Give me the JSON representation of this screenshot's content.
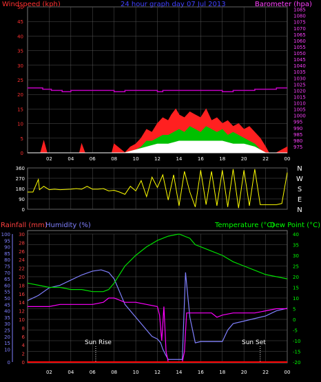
{
  "chart_data": [
    {
      "type": "area",
      "title": "24 hour graph day  07 Jul 2013",
      "ylabel": "Windspeed (kph)",
      "y2label": "Barometer (hpa)",
      "ylim": [
        0,
        50
      ],
      "y2lim": [
        970,
        1087
      ],
      "yticks": [
        "0",
        "5",
        "10",
        "15",
        "20",
        "25",
        "30",
        "35",
        "40",
        "45",
        "50"
      ],
      "y2ticks": [
        "975",
        "980",
        "985",
        "990",
        "995",
        "1000",
        "1005",
        "1010",
        "1015",
        "1020",
        "1025",
        "1030",
        "1035",
        "1040",
        "1045",
        "1050",
        "1055",
        "1060",
        "1065",
        "1070",
        "1075",
        "1080",
        "1085"
      ],
      "xticks": [
        "02",
        "04",
        "06",
        "08",
        "10",
        "12",
        "14",
        "16",
        "18",
        "20",
        "22",
        "00"
      ],
      "x_range_hours": [
        0,
        24
      ],
      "grid": true,
      "colors": {
        "gust": "#ff2020",
        "wind": "#00c000",
        "avg": "#ffffff",
        "baro": "#c000c0",
        "axis_left": "#ff3030",
        "axis_right": "#ff40ff",
        "grid": "#555555"
      },
      "series": [
        {
          "key": "barometer",
          "x": [
            0,
            1.0,
            1.4,
            2.2,
            3.0,
            3.2,
            4.0,
            5.0,
            6.0,
            7.5,
            8.0,
            8.3,
            9.0,
            10.5,
            11.0,
            12.0,
            12.5,
            13.0,
            14.0,
            15.0,
            16.0,
            17.5,
            18.0,
            19.0,
            20.0,
            21.0,
            22.0,
            23.0,
            24.0
          ],
          "y": [
            1022,
            1022,
            1021,
            1020,
            1020,
            1019,
            1020,
            1020,
            1020,
            1020,
            1019,
            1019,
            1020,
            1020,
            1020,
            1019,
            1020,
            1020,
            1020,
            1020,
            1020,
            1020,
            1019,
            1020,
            1020,
            1021,
            1021,
            1022,
            1022
          ]
        },
        {
          "key": "gust",
          "x": [
            0,
            1.2,
            1.5,
            1.8,
            2,
            4,
            4.8,
            5,
            5.3,
            6,
            7.8,
            8,
            9,
            9.5,
            10,
            10.5,
            11,
            11.5,
            12,
            12.5,
            13,
            13.3,
            13.7,
            14,
            14.5,
            15,
            15.5,
            16,
            16.5,
            17,
            17.5,
            18,
            18.5,
            19,
            19.5,
            20,
            20.5,
            21,
            21.5,
            22,
            22.3,
            23,
            24
          ],
          "y": [
            0,
            0,
            4,
            0,
            0,
            0,
            0,
            3,
            0,
            0,
            0,
            3,
            0,
            2,
            3,
            5,
            8,
            7,
            10,
            12,
            11,
            13,
            15,
            13,
            12,
            14,
            13,
            12,
            15,
            11,
            12,
            10,
            11,
            9,
            10,
            8,
            9,
            7,
            5,
            2,
            0,
            0,
            2
          ]
        },
        {
          "key": "wind",
          "x": [
            0,
            9,
            10,
            10.5,
            11,
            11.5,
            12,
            12.5,
            13,
            13.5,
            14,
            14.5,
            15,
            15.5,
            16,
            16.5,
            17,
            17.5,
            18,
            18.5,
            19,
            19.5,
            20,
            20.5,
            21,
            21.5,
            22,
            24
          ],
          "y": [
            0,
            0,
            1,
            2,
            4,
            4,
            5,
            6,
            6,
            7,
            8,
            7,
            9,
            8,
            7,
            9,
            8,
            7,
            8,
            6,
            7,
            6,
            5,
            4,
            3,
            1,
            0,
            0
          ]
        },
        {
          "key": "avg",
          "x": [
            0,
            9,
            10,
            11,
            12,
            13,
            14,
            15,
            16,
            17,
            18,
            19,
            20,
            21,
            22,
            24
          ],
          "y": [
            0,
            0,
            1,
            2,
            3,
            3,
            4,
            4,
            4,
            4,
            4,
            3,
            3,
            2,
            0,
            0
          ]
        }
      ]
    },
    {
      "type": "line",
      "title": "",
      "ylabel": "",
      "ylim": [
        0,
        360
      ],
      "yticks": [
        "0",
        "90",
        "180",
        "270",
        "360"
      ],
      "compass": [
        "N",
        "W",
        "S",
        "E",
        "N"
      ],
      "xticks": [
        "02",
        "04",
        "06",
        "08",
        "10",
        "12",
        "14",
        "16",
        "18",
        "20",
        "22",
        "00"
      ],
      "x_range_hours": [
        0,
        24
      ],
      "colors": {
        "dir": "#ffff00",
        "axis": "#ffffff"
      },
      "series": [
        {
          "key": "direction",
          "x": [
            0,
            0.5,
            1.0,
            1.1,
            1.5,
            2.0,
            2.5,
            3.0,
            4.0,
            4.5,
            5.0,
            5.5,
            6.0,
            6.5,
            7.0,
            7.5,
            8.0,
            8.5,
            9.0,
            9.5,
            10.0,
            10.5,
            11.0,
            11.5,
            12.0,
            12.5,
            13.0,
            13.5,
            14.0,
            14.5,
            15.0,
            15.5,
            16.0,
            16.5,
            17.0,
            17.5,
            18.0,
            18.5,
            19.0,
            19.5,
            20.0,
            20.5,
            21.0,
            21.5,
            22.0,
            22.5,
            23.0,
            23.5,
            24.0
          ],
          "y": [
            150,
            150,
            260,
            170,
            200,
            170,
            175,
            170,
            175,
            180,
            175,
            200,
            175,
            175,
            180,
            160,
            165,
            150,
            130,
            200,
            160,
            250,
            110,
            280,
            190,
            300,
            80,
            300,
            30,
            330,
            150,
            20,
            340,
            40,
            330,
            30,
            340,
            20,
            350,
            10,
            340,
            30,
            350,
            40,
            40,
            40,
            40,
            50,
            320
          ]
        }
      ]
    },
    {
      "type": "line",
      "title": "",
      "ylabel": "Rainfall (mm)",
      "ylabel2": "Humidity (%)",
      "y3label": "Temperature (°C)",
      "y4label": "Dew Point (°C)",
      "ylim_rain": [
        0,
        30
      ],
      "ylim_humidity": [
        0,
        100
      ],
      "ylim_temp": [
        -20,
        40
      ],
      "rain_ticks": [
        "0",
        "2",
        "4",
        "6",
        "8",
        "10",
        "12",
        "14",
        "16",
        "18",
        "20",
        "22",
        "24",
        "26",
        "28",
        "30"
      ],
      "humidity_ticks": [
        "0",
        "10",
        "15",
        "20",
        "25",
        "30",
        "35",
        "40",
        "45",
        "50",
        "55",
        "60",
        "65",
        "70",
        "75",
        "80",
        "85",
        "90",
        "95",
        "100"
      ],
      "temp_ticks": [
        "-20",
        "-15",
        "-10",
        "-5",
        "0",
        "5",
        "10",
        "15",
        "20",
        "25",
        "30",
        "35",
        "40"
      ],
      "xticks": [
        "02",
        "04",
        "06",
        "08",
        "10",
        "12",
        "14",
        "16",
        "18",
        "20",
        "22",
        "00"
      ],
      "x_range_hours": [
        0,
        24
      ],
      "annotations": [
        {
          "text": "Sun Rise",
          "x": 6.3
        },
        {
          "text": "Sun Set",
          "x": 21.5
        }
      ],
      "colors": {
        "temp": "#00e000",
        "dew": "#ff00ff",
        "humidity": "#8080ff",
        "rain": "#ff0000",
        "rain_axis": "#ff4040",
        "hum_axis": "#8080ff",
        "temp_axis": "#00ff00"
      },
      "series": [
        {
          "key": "rainfall",
          "x": [
            0,
            24
          ],
          "y": [
            0,
            0
          ]
        },
        {
          "key": "humidity",
          "x": [
            0,
            1,
            2,
            3,
            4,
            5,
            6,
            6.8,
            7.5,
            8,
            8.5,
            9,
            10,
            11,
            11.5,
            12,
            12.3,
            12.5,
            12.8,
            13,
            14,
            14.3,
            14.6,
            15,
            15.5,
            16,
            17,
            17.5,
            18,
            18.5,
            19,
            20,
            21,
            22,
            23,
            24
          ],
          "y": [
            48,
            52,
            58,
            60,
            64,
            68,
            71,
            72,
            70,
            65,
            55,
            45,
            35,
            25,
            20,
            18,
            15,
            10,
            5,
            2,
            2,
            2,
            70,
            35,
            15,
            16,
            16,
            16,
            16,
            25,
            30,
            32,
            34,
            36,
            40,
            42
          ]
        },
        {
          "key": "temperature",
          "x": [
            0,
            1,
            2,
            3,
            4,
            5,
            6,
            7,
            7.5,
            8,
            8.5,
            9,
            10,
            11,
            12,
            13,
            14,
            15,
            15.5,
            16,
            17,
            18,
            19,
            20,
            21,
            22,
            23,
            24
          ],
          "y": [
            17,
            16,
            15,
            15,
            14,
            14,
            13,
            13,
            14,
            17,
            21,
            25,
            30,
            34,
            37,
            39,
            40,
            38,
            35,
            34,
            32,
            30,
            27,
            25,
            23,
            21,
            20,
            19
          ]
        },
        {
          "key": "dewpoint",
          "x": [
            0,
            1,
            2,
            3,
            4,
            5,
            6,
            7,
            7.5,
            8,
            9,
            10,
            11,
            12,
            12.2,
            12.4,
            12.6,
            12.8,
            13,
            14,
            14.3,
            14.5,
            14.7,
            15,
            16,
            17,
            17.5,
            18,
            19,
            20,
            21,
            22,
            23,
            24
          ],
          "y": [
            6,
            6,
            6,
            7,
            7,
            7,
            7,
            8,
            10,
            10,
            8,
            8,
            7,
            6,
            2,
            -10,
            6,
            -15,
            -20,
            -20,
            -20,
            -15,
            3,
            3,
            3,
            3,
            1,
            2,
            3,
            3,
            3,
            4,
            5,
            5
          ]
        }
      ]
    }
  ],
  "legend": {
    "windspeed": "Windspeed (kph)",
    "title": "24 hour graph day  07 Jul 2013",
    "barometer": "Barometer (hpa)",
    "rainfall": "Rainfall (mm)",
    "humidity": "Humidity (%)",
    "temperature": "Temperature (°C)",
    "dewpoint": "Dew Point (°C)",
    "sunrise": "Sun Rise",
    "sunset": "Sun Set"
  }
}
